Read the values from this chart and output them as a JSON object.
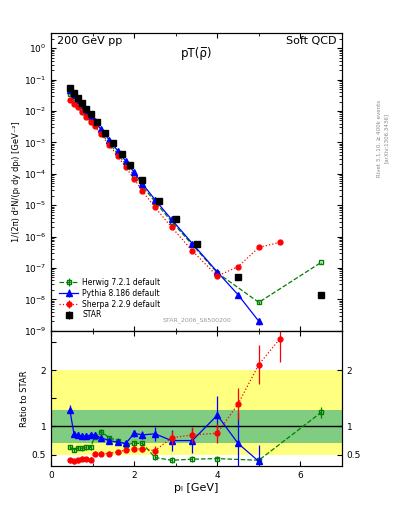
{
  "title_left": "200 GeV pp",
  "title_right": "Soft QCD",
  "plot_title": "pT(ρ̅)",
  "watermark": "STAR_2006_S6500200",
  "right_label": "Rivet 3.1.10, ≥ 400k events",
  "right_label2": "[arXiv:1306.3436]",
  "ylabel_main": "1/(2π) d²N/(pₗ dy dpₗ) [GeV⁻²]",
  "ylabel_ratio": "Ratio to STAR",
  "xlabel": "pₗ [GeV]",
  "ylim_main": [
    1e-09,
    3.0
  ],
  "ylim_ratio": [
    0.3,
    2.7
  ],
  "xlim": [
    0.0,
    7.0
  ],
  "star_x": [
    0.45,
    0.55,
    0.65,
    0.75,
    0.85,
    0.95,
    1.1,
    1.3,
    1.5,
    1.7,
    1.9,
    2.2,
    2.6,
    3.0,
    3.5,
    4.5,
    6.5
  ],
  "star_y": [
    0.055,
    0.038,
    0.026,
    0.018,
    0.012,
    0.0082,
    0.0044,
    0.002,
    0.00095,
    0.00042,
    0.00019,
    6.5e-05,
    1.4e-05,
    3.5e-06,
    6e-07,
    5e-08,
    1.4e-08
  ],
  "star_yerr": [
    0.004,
    0.003,
    0.002,
    0.0015,
    0.001,
    0.0007,
    0.0004,
    0.00018,
    8e-05,
    3.5e-05,
    1.6e-05,
    5e-06,
    1.2e-06,
    3e-07,
    7e-08,
    8e-09,
    2e-09
  ],
  "herwig_x": [
    0.45,
    0.55,
    0.65,
    0.75,
    0.85,
    0.95,
    1.05,
    1.2,
    1.4,
    1.6,
    1.8,
    2.0,
    2.2,
    2.5,
    2.9,
    3.4,
    4.0,
    5.0,
    6.5
  ],
  "herwig_y": [
    0.035,
    0.022,
    0.016,
    0.011,
    0.0075,
    0.0052,
    0.0036,
    0.002,
    0.00095,
    0.00044,
    0.0002,
    8.8e-05,
    4e-05,
    1.3e-05,
    3e-06,
    5.5e-07,
    7e-08,
    8e-09,
    1.5e-07
  ],
  "herwig_yerr": [
    0.002,
    0.001,
    0.001,
    0.0007,
    0.0005,
    0.0003,
    0.0002,
    0.0001,
    5e-05,
    2e-05,
    8e-06,
    4e-06,
    2e-06,
    6e-07,
    1.5e-07,
    3e-08,
    5e-09,
    1e-09,
    1e-08
  ],
  "pythia_x": [
    0.45,
    0.55,
    0.65,
    0.75,
    0.85,
    0.95,
    1.05,
    1.2,
    1.4,
    1.6,
    1.8,
    2.0,
    2.2,
    2.5,
    2.9,
    3.4,
    4.0,
    4.5,
    5.0
  ],
  "pythia_y": [
    0.048,
    0.033,
    0.022,
    0.015,
    0.01,
    0.007,
    0.0048,
    0.0026,
    0.0012,
    0.00055,
    0.00025,
    0.00011,
    4.8e-05,
    1.5e-05,
    3.5e-06,
    6e-07,
    7.5e-08,
    1.4e-08,
    2e-09
  ],
  "pythia_yerr": [
    0.003,
    0.002,
    0.0015,
    0.001,
    0.0007,
    0.0005,
    0.0003,
    0.00015,
    7e-05,
    3e-05,
    1.2e-05,
    5e-06,
    2.5e-06,
    8e-07,
    2e-07,
    4e-08,
    6e-09,
    2e-09,
    5e-10
  ],
  "sherpa_x": [
    0.45,
    0.55,
    0.65,
    0.75,
    0.85,
    0.95,
    1.05,
    1.2,
    1.4,
    1.6,
    1.8,
    2.0,
    2.2,
    2.5,
    2.9,
    3.4,
    4.0,
    4.5,
    5.0,
    5.5
  ],
  "sherpa_y": [
    0.022,
    0.017,
    0.013,
    0.009,
    0.0065,
    0.0046,
    0.0033,
    0.0018,
    0.00082,
    0.00037,
    0.00016,
    6.8e-05,
    2.8e-05,
    8.5e-06,
    2e-06,
    3.5e-07,
    5.5e-08,
    1.1e-07,
    4.5e-07,
    6.5e-07
  ],
  "sherpa_yerr": [
    0.002,
    0.0015,
    0.001,
    0.0007,
    0.0005,
    0.0003,
    0.0002,
    0.0001,
    4e-05,
    2e-05,
    8e-06,
    3.5e-06,
    1.5e-06,
    5e-07,
    1.2e-07,
    2.5e-08,
    5e-09,
    1e-08,
    4e-08,
    5e-08
  ],
  "ratio_herwig_x": [
    0.45,
    0.55,
    0.65,
    0.75,
    0.85,
    0.95,
    1.05,
    1.2,
    1.4,
    1.6,
    1.8,
    2.0,
    2.2,
    2.5,
    2.9,
    3.4,
    4.0,
    5.0,
    6.5
  ],
  "ratio_herwig_y": [
    0.64,
    0.58,
    0.62,
    0.61,
    0.63,
    0.63,
    0.82,
    0.91,
    0.8,
    0.75,
    0.68,
    0.7,
    0.7,
    0.45,
    0.4,
    0.42,
    0.43,
    0.4,
    1.25
  ],
  "ratio_herwig_yerr": [
    0.04,
    0.04,
    0.04,
    0.04,
    0.04,
    0.04,
    0.05,
    0.05,
    0.04,
    0.04,
    0.04,
    0.05,
    0.05,
    0.05,
    0.05,
    0.05,
    0.05,
    0.06,
    0.1
  ],
  "ratio_pythia_x": [
    0.45,
    0.55,
    0.65,
    0.75,
    0.85,
    0.95,
    1.05,
    1.2,
    1.4,
    1.6,
    1.8,
    2.0,
    2.2,
    2.5,
    2.9,
    3.4,
    4.0,
    4.5,
    5.0
  ],
  "ratio_pythia_y": [
    1.3,
    0.87,
    0.85,
    0.83,
    0.83,
    0.85,
    0.85,
    0.8,
    0.75,
    0.72,
    0.7,
    0.88,
    0.85,
    0.87,
    0.75,
    0.75,
    1.2,
    0.7,
    0.38
  ],
  "ratio_pythia_yerr": [
    0.08,
    0.05,
    0.05,
    0.05,
    0.05,
    0.05,
    0.05,
    0.05,
    0.05,
    0.05,
    0.05,
    0.06,
    0.07,
    0.12,
    0.18,
    0.22,
    0.35,
    0.55,
    0.3
  ],
  "ratio_sherpa_x": [
    0.45,
    0.55,
    0.65,
    0.75,
    0.85,
    0.95,
    1.05,
    1.2,
    1.4,
    1.6,
    1.8,
    2.0,
    2.2,
    2.5,
    2.9,
    3.4,
    4.0,
    4.5,
    5.0,
    5.5
  ],
  "ratio_sherpa_y": [
    0.4,
    0.38,
    0.4,
    0.43,
    0.42,
    0.41,
    0.52,
    0.52,
    0.52,
    0.55,
    0.58,
    0.6,
    0.6,
    0.57,
    0.8,
    0.85,
    0.88,
    1.4,
    2.1,
    2.55
  ],
  "ratio_sherpa_yerr": [
    0.04,
    0.04,
    0.04,
    0.04,
    0.04,
    0.04,
    0.04,
    0.04,
    0.04,
    0.04,
    0.04,
    0.05,
    0.06,
    0.08,
    0.12,
    0.14,
    0.18,
    0.28,
    0.35,
    0.4
  ],
  "color_star": "#000000",
  "color_herwig": "#008000",
  "color_pythia": "#0000ff",
  "color_sherpa": "#ff0000",
  "color_band_yellow": "#ffff80",
  "color_band_green": "#80cc80"
}
